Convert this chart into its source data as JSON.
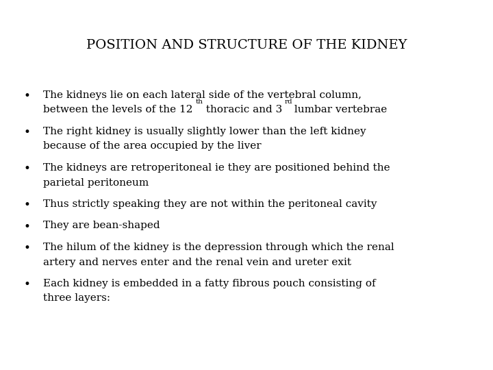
{
  "title": "POSITION AND STRUCTURE OF THE KIDNEY",
  "background_color": "#ffffff",
  "text_color": "#000000",
  "title_fontsize": 14,
  "body_fontsize": 11,
  "sup_fontsize": 7.5,
  "bullets": [
    {
      "lines": [
        {
          "text": "The kidneys lie on each lateral side of the vertebral column,",
          "type": "plain"
        },
        {
          "text": "between the levels of the 12",
          "type": "super2",
          "sup1": "th",
          "mid": " thoracic and 3",
          "sup2": "rd",
          "end": " lumbar vertebrae"
        }
      ]
    },
    {
      "lines": [
        {
          "text": "The right kidney is usually slightly lower than the left kidney",
          "type": "plain"
        },
        {
          "text": "because of the area occupied by the liver",
          "type": "plain"
        }
      ]
    },
    {
      "lines": [
        {
          "text": "The kidneys are retroperitoneal ie they are positioned behind the",
          "type": "plain"
        },
        {
          "text": "parietal peritoneum",
          "type": "plain"
        }
      ]
    },
    {
      "lines": [
        {
          "text": "Thus strictly speaking they are not within the peritoneal cavity",
          "type": "plain"
        }
      ]
    },
    {
      "lines": [
        {
          "text": "They are bean-shaped",
          "type": "plain"
        }
      ]
    },
    {
      "lines": [
        {
          "text": "The hilum of the kidney is the depression through which the renal",
          "type": "plain"
        },
        {
          "text": "artery and nerves enter and the renal vein and ureter exit",
          "type": "plain"
        }
      ]
    },
    {
      "lines": [
        {
          "text": "Each kidney is embedded in a fatty fibrous pouch consisting of",
          "type": "plain"
        },
        {
          "text": "three layers:",
          "type": "plain"
        }
      ]
    }
  ]
}
